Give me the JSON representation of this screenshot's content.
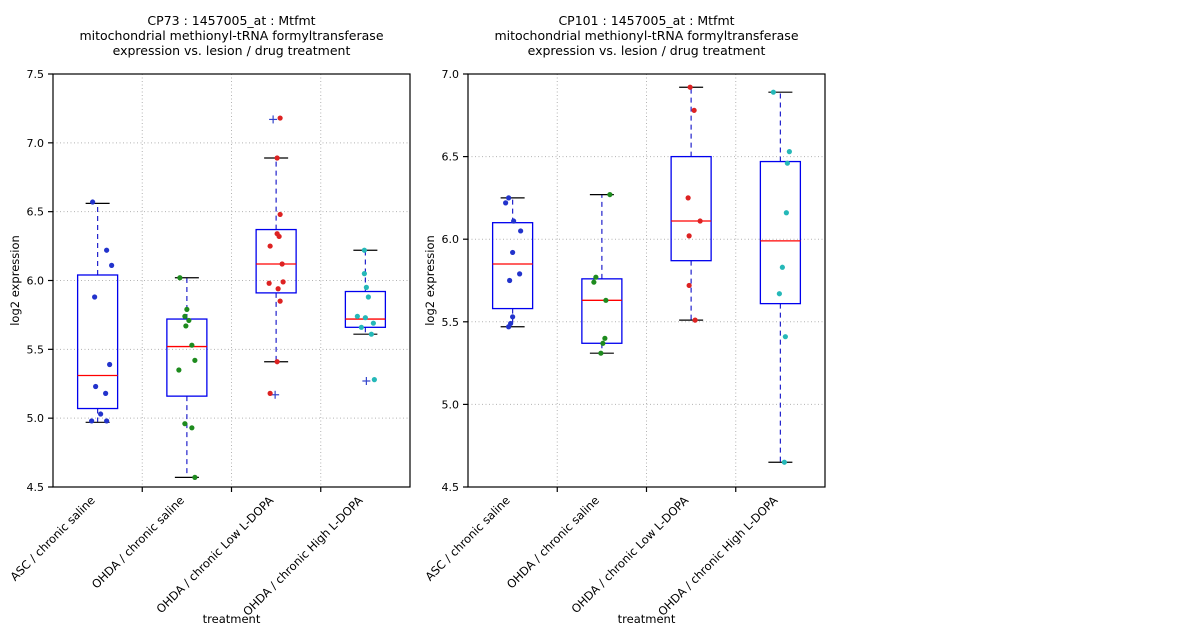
{
  "figure": {
    "background": "#ffffff"
  },
  "colors": {
    "frame": "#000000",
    "grid": "#b3b3b3",
    "box_edge": "#0000ee",
    "median": "#ff0000",
    "whisker": "#2222cc",
    "cap": "#000000",
    "flier": "#3344cc",
    "group_point_colors": [
      "#2233cc",
      "#1e8b1e",
      "#dd2222",
      "#25b8b8"
    ]
  },
  "chart_data": [
    {
      "type": "boxplot",
      "title_lines": [
        "CP73 : 1457005_at : Mtfmt",
        "mitochondrial methionyl-tRNA formyltransferase",
        "expression vs. lesion / drug treatment"
      ],
      "xlabel": "treatment",
      "ylabel": "log2 expression",
      "ylim": [
        4.5,
        7.5
      ],
      "yticks": [
        4.5,
        5.0,
        5.5,
        6.0,
        6.5,
        7.0,
        7.5
      ],
      "grid": true,
      "categories": [
        "ASC / chronic saline",
        "OHDA / chronic saline",
        "OHDA / chronic Low L-DOPA",
        "OHDA / chronic High L-DOPA"
      ],
      "groups": [
        {
          "category": "ASC / chronic saline",
          "point_color": "#2233cc",
          "box": {
            "q1": 5.07,
            "median": 5.31,
            "q3": 6.04,
            "whisker_low": 4.97,
            "whisker_high": 6.56
          },
          "points": [
            [
              6.57,
              -5
            ],
            [
              6.22,
              9
            ],
            [
              6.11,
              14
            ],
            [
              5.88,
              -3
            ],
            [
              5.39,
              12
            ],
            [
              5.23,
              -2
            ],
            [
              5.18,
              8
            ],
            [
              5.03,
              3
            ],
            [
              4.98,
              -6
            ],
            [
              4.98,
              9
            ]
          ],
          "fliers": []
        },
        {
          "category": "OHDA / chronic saline",
          "point_color": "#1e8b1e",
          "box": {
            "q1": 5.16,
            "median": 5.52,
            "q3": 5.72,
            "whisker_low": 4.57,
            "whisker_high": 6.02
          },
          "points": [
            [
              6.02,
              -7
            ],
            [
              5.79,
              0
            ],
            [
              5.74,
              -2
            ],
            [
              5.71,
              2
            ],
            [
              5.67,
              -1
            ],
            [
              5.53,
              5
            ],
            [
              5.42,
              8
            ],
            [
              5.35,
              -8
            ],
            [
              4.96,
              -2
            ],
            [
              4.93,
              5
            ],
            [
              4.57,
              8
            ]
          ],
          "fliers": []
        },
        {
          "category": "OHDA / chronic Low L-DOPA",
          "point_color": "#dd2222",
          "box": {
            "q1": 5.91,
            "median": 6.12,
            "q3": 6.37,
            "whisker_low": 5.41,
            "whisker_high": 6.89
          },
          "points": [
            [
              7.18,
              4
            ],
            [
              6.89,
              1
            ],
            [
              6.48,
              4
            ],
            [
              6.34,
              1
            ],
            [
              6.32,
              3
            ],
            [
              6.25,
              -6
            ],
            [
              6.12,
              6
            ],
            [
              5.99,
              7
            ],
            [
              5.98,
              -7
            ],
            [
              5.94,
              2
            ],
            [
              5.85,
              4
            ],
            [
              5.41,
              1
            ],
            [
              5.18,
              -6
            ]
          ],
          "fliers": [
            [
              7.17,
              -3
            ],
            [
              5.17,
              -1
            ]
          ]
        },
        {
          "category": "OHDA / chronic High L-DOPA",
          "point_color": "#25b8b8",
          "box": {
            "q1": 5.66,
            "median": 5.72,
            "q3": 5.92,
            "whisker_low": 5.61,
            "whisker_high": 6.22
          },
          "points": [
            [
              6.22,
              -1
            ],
            [
              6.05,
              -1
            ],
            [
              5.95,
              1
            ],
            [
              5.88,
              3
            ],
            [
              5.74,
              -8
            ],
            [
              5.73,
              0
            ],
            [
              5.69,
              8
            ],
            [
              5.66,
              -4
            ],
            [
              5.61,
              6
            ],
            [
              5.28,
              9
            ]
          ],
          "fliers": [
            [
              5.27,
              1
            ]
          ]
        }
      ]
    },
    {
      "type": "boxplot",
      "title_lines": [
        "CP101 : 1457005_at : Mtfmt",
        "mitochondrial methionyl-tRNA formyltransferase",
        "expression vs. lesion / drug treatment"
      ],
      "xlabel": "treatment",
      "ylabel": "log2 expression",
      "ylim": [
        4.5,
        7.0
      ],
      "yticks": [
        4.5,
        5.0,
        5.5,
        6.0,
        6.5,
        7.0
      ],
      "grid": true,
      "categories": [
        "ASC / chronic saline",
        "OHDA / chronic saline",
        "OHDA / chronic Low L-DOPA",
        "OHDA / chronic High L-DOPA"
      ],
      "groups": [
        {
          "category": "ASC / chronic saline",
          "point_color": "#2233cc",
          "box": {
            "q1": 5.58,
            "median": 5.85,
            "q3": 6.1,
            "whisker_low": 5.47,
            "whisker_high": 6.25
          },
          "points": [
            [
              6.25,
              -4
            ],
            [
              6.22,
              -7
            ],
            [
              6.11,
              1
            ],
            [
              6.05,
              8
            ],
            [
              5.92,
              0
            ],
            [
              5.79,
              7
            ],
            [
              5.75,
              -3
            ],
            [
              5.53,
              0
            ],
            [
              5.49,
              -2
            ],
            [
              5.47,
              -4
            ]
          ],
          "fliers": []
        },
        {
          "category": "OHDA / chronic saline",
          "point_color": "#1e8b1e",
          "box": {
            "q1": 5.37,
            "median": 5.63,
            "q3": 5.76,
            "whisker_low": 5.31,
            "whisker_high": 6.27
          },
          "points": [
            [
              6.27,
              8
            ],
            [
              5.77,
              -6
            ],
            [
              5.74,
              -8
            ],
            [
              5.63,
              4
            ],
            [
              5.4,
              3
            ],
            [
              5.37,
              1
            ],
            [
              5.31,
              -1
            ]
          ],
          "fliers": []
        },
        {
          "category": "OHDA / chronic Low L-DOPA",
          "point_color": "#dd2222",
          "box": {
            "q1": 5.87,
            "median": 6.11,
            "q3": 6.5,
            "whisker_low": 5.51,
            "whisker_high": 6.92
          },
          "points": [
            [
              6.92,
              -1
            ],
            [
              6.78,
              3
            ],
            [
              6.25,
              -3
            ],
            [
              6.11,
              9
            ],
            [
              6.02,
              -2
            ],
            [
              5.72,
              -2
            ],
            [
              5.51,
              4
            ]
          ],
          "fliers": []
        },
        {
          "category": "OHDA / chronic High L-DOPA",
          "point_color": "#25b8b8",
          "box": {
            "q1": 5.61,
            "median": 5.99,
            "q3": 6.47,
            "whisker_low": 4.65,
            "whisker_high": 6.89
          },
          "points": [
            [
              6.89,
              -7
            ],
            [
              6.53,
              9
            ],
            [
              6.46,
              7
            ],
            [
              6.16,
              6
            ],
            [
              5.83,
              2
            ],
            [
              5.67,
              -1
            ],
            [
              5.41,
              5
            ],
            [
              4.65,
              4
            ]
          ],
          "fliers": []
        }
      ]
    }
  ]
}
